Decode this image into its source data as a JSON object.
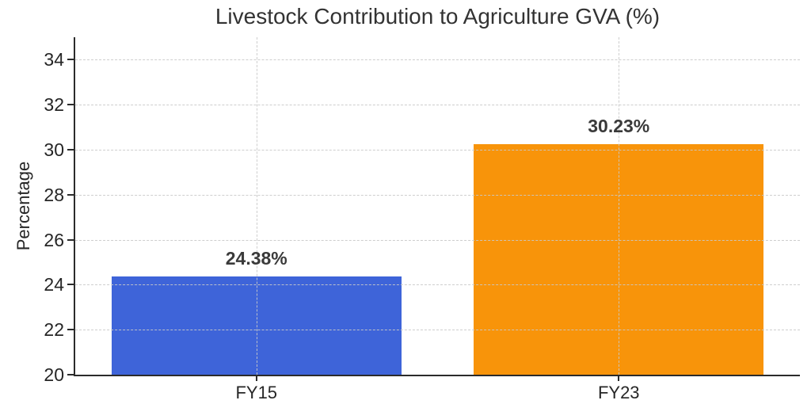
{
  "chart_data": {
    "type": "bar",
    "title": "Livestock Contribution to Agriculture GVA (%)",
    "xlabel": "",
    "ylabel": "Percentage",
    "categories": [
      "FY15",
      "FY23"
    ],
    "values": [
      24.38,
      30.23
    ],
    "value_labels": [
      "24.38%",
      "30.23%"
    ],
    "bar_colors": [
      "#3E64D9",
      "#F8940A"
    ],
    "ylim": [
      20,
      35
    ],
    "yticks": [
      20,
      22,
      24,
      26,
      28,
      30,
      32,
      34
    ],
    "grid": {
      "visible": true,
      "style": "dashed",
      "color": "#c9c9c9",
      "axes": "both"
    },
    "legend": "none",
    "colors": {
      "title_text": "#333333",
      "tick_text": "#262626",
      "value_label_text": "#3a3a3a",
      "spine": "#2b2b2b",
      "background": "#ffffff"
    }
  }
}
